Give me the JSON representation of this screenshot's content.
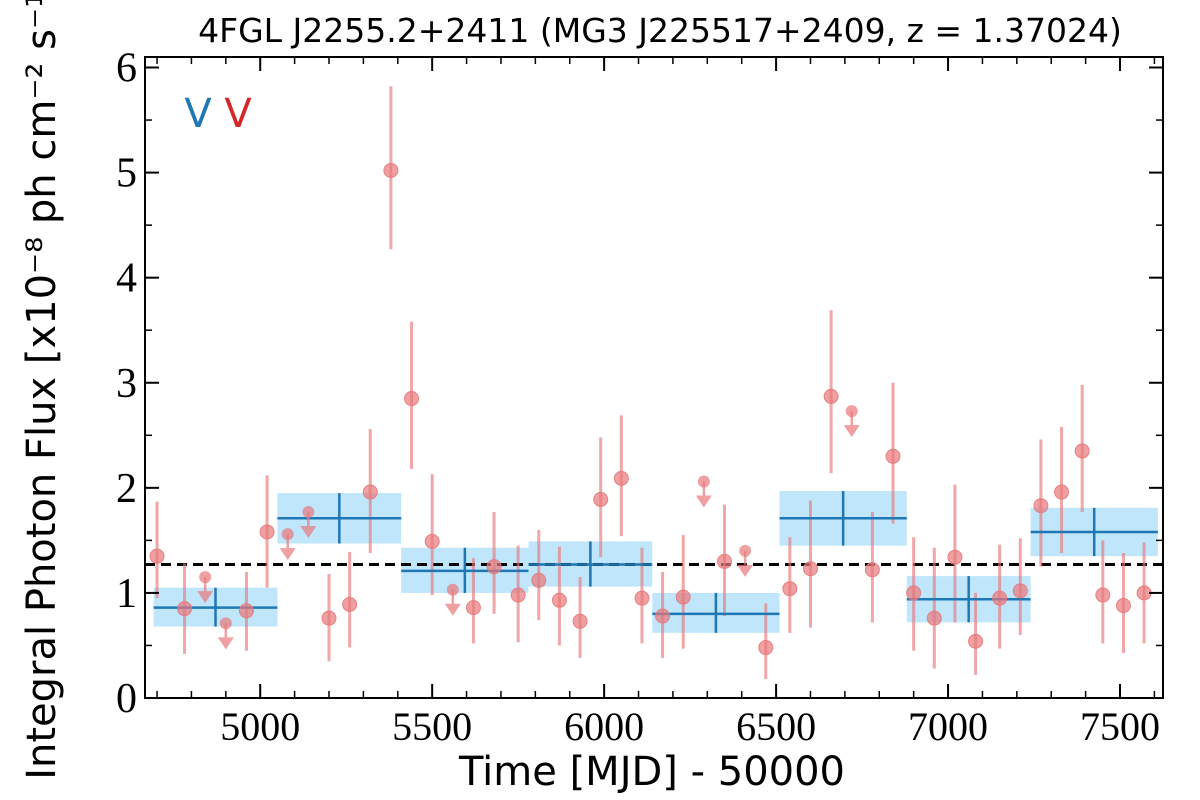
{
  "chart_data": {
    "type": "scatter",
    "title": "4FGL J2255.2+2411 (MG3 J225517+2409, z = 1.37024)",
    "xlabel": "Time [MJD] - 50000",
    "ylabel": "Integral Photon Flux [x10⁻⁸ ph cm⁻² s⁻¹]",
    "xlim": [
      4665,
      7625
    ],
    "ylim": [
      0,
      6.1
    ],
    "xticks": [
      5000,
      5500,
      6000,
      6500,
      7000,
      7500
    ],
    "yticks": [
      0,
      1,
      2,
      3,
      4,
      5,
      6
    ],
    "grid": false,
    "markers": [
      {
        "label": "V",
        "color": "#1f77b4"
      },
      {
        "label": "V",
        "color": "#d62728"
      }
    ],
    "colors": {
      "points": "#e8787a",
      "bins": "#1f77b4",
      "bin_band": "#bfe6fb",
      "mean_line": "#000000"
    },
    "mean_flux": 1.27,
    "points": [
      {
        "x": 4700,
        "y": 1.35,
        "lo": 0.95,
        "hi": 1.87
      },
      {
        "x": 4780,
        "y": 0.85,
        "lo": 0.42,
        "hi": 1.28
      },
      {
        "x": 4960,
        "y": 0.83,
        "lo": 0.45,
        "hi": 1.2
      },
      {
        "x": 5020,
        "y": 1.58,
        "lo": 1.05,
        "hi": 2.12
      },
      {
        "x": 5200,
        "y": 0.76,
        "lo": 0.35,
        "hi": 1.18
      },
      {
        "x": 5260,
        "y": 0.89,
        "lo": 0.48,
        "hi": 1.39
      },
      {
        "x": 5320,
        "y": 1.96,
        "lo": 1.38,
        "hi": 2.56
      },
      {
        "x": 5380,
        "y": 5.02,
        "lo": 4.27,
        "hi": 5.82
      },
      {
        "x": 5440,
        "y": 2.85,
        "lo": 2.18,
        "hi": 3.58
      },
      {
        "x": 5500,
        "y": 1.49,
        "lo": 0.98,
        "hi": 2.13
      },
      {
        "x": 5620,
        "y": 0.86,
        "lo": 0.52,
        "hi": 1.33
      },
      {
        "x": 5680,
        "y": 1.25,
        "lo": 0.8,
        "hi": 1.77
      },
      {
        "x": 5750,
        "y": 0.98,
        "lo": 0.53,
        "hi": 1.45
      },
      {
        "x": 5810,
        "y": 1.12,
        "lo": 0.74,
        "hi": 1.6
      },
      {
        "x": 5870,
        "y": 0.93,
        "lo": 0.5,
        "hi": 1.44
      },
      {
        "x": 5930,
        "y": 0.73,
        "lo": 0.38,
        "hi": 1.15
      },
      {
        "x": 5990,
        "y": 1.89,
        "lo": 1.34,
        "hi": 2.48
      },
      {
        "x": 6050,
        "y": 2.09,
        "lo": 1.54,
        "hi": 2.69
      },
      {
        "x": 6110,
        "y": 0.95,
        "lo": 0.52,
        "hi": 1.43
      },
      {
        "x": 6170,
        "y": 0.78,
        "lo": 0.38,
        "hi": 1.2
      },
      {
        "x": 6230,
        "y": 0.96,
        "lo": 0.47,
        "hi": 1.55
      },
      {
        "x": 6350,
        "y": 1.3,
        "lo": 0.78,
        "hi": 1.84
      },
      {
        "x": 6470,
        "y": 0.48,
        "lo": 0.18,
        "hi": 0.9
      },
      {
        "x": 6540,
        "y": 1.04,
        "lo": 0.62,
        "hi": 1.53
      },
      {
        "x": 6600,
        "y": 1.23,
        "lo": 0.67,
        "hi": 1.88
      },
      {
        "x": 6660,
        "y": 2.87,
        "lo": 2.14,
        "hi": 3.69
      },
      {
        "x": 6780,
        "y": 1.22,
        "lo": 0.72,
        "hi": 1.77
      },
      {
        "x": 6840,
        "y": 2.3,
        "lo": 1.66,
        "hi": 3.0
      },
      {
        "x": 6900,
        "y": 1.0,
        "lo": 0.45,
        "hi": 1.53
      },
      {
        "x": 6960,
        "y": 0.76,
        "lo": 0.28,
        "hi": 1.43
      },
      {
        "x": 7020,
        "y": 1.34,
        "lo": 0.72,
        "hi": 2.03
      },
      {
        "x": 7080,
        "y": 0.54,
        "lo": 0.22,
        "hi": 1.0
      },
      {
        "x": 7150,
        "y": 0.95,
        "lo": 0.47,
        "hi": 1.46
      },
      {
        "x": 7210,
        "y": 1.02,
        "lo": 0.6,
        "hi": 1.52
      },
      {
        "x": 7270,
        "y": 1.83,
        "lo": 1.25,
        "hi": 2.46
      },
      {
        "x": 7330,
        "y": 1.96,
        "lo": 1.38,
        "hi": 2.58
      },
      {
        "x": 7390,
        "y": 2.35,
        "lo": 1.77,
        "hi": 2.98
      },
      {
        "x": 7450,
        "y": 0.98,
        "lo": 0.52,
        "hi": 1.5
      },
      {
        "x": 7510,
        "y": 0.88,
        "lo": 0.43,
        "hi": 1.38
      },
      {
        "x": 7570,
        "y": 1.0,
        "lo": 0.52,
        "hi": 1.48
      }
    ],
    "upper_limits": [
      {
        "x": 4840,
        "y": 1.15
      },
      {
        "x": 4900,
        "y": 0.71
      },
      {
        "x": 5080,
        "y": 1.56
      },
      {
        "x": 5140,
        "y": 1.77
      },
      {
        "x": 5560,
        "y": 1.03
      },
      {
        "x": 6290,
        "y": 2.06
      },
      {
        "x": 6410,
        "y": 1.4
      },
      {
        "x": 6720,
        "y": 2.73
      }
    ],
    "bins": [
      {
        "x0": 4690,
        "x1": 5050,
        "y": 0.86,
        "lo": 0.68,
        "hi": 1.05
      },
      {
        "x0": 5050,
        "x1": 5410,
        "y": 1.71,
        "lo": 1.47,
        "hi": 1.95
      },
      {
        "x0": 5410,
        "x1": 5780,
        "y": 1.21,
        "lo": 1.0,
        "hi": 1.43
      },
      {
        "x0": 5780,
        "x1": 6140,
        "y": 1.27,
        "lo": 1.06,
        "hi": 1.49
      },
      {
        "x0": 6140,
        "x1": 6510,
        "y": 0.8,
        "lo": 0.62,
        "hi": 1.0
      },
      {
        "x0": 6510,
        "x1": 6880,
        "y": 1.71,
        "lo": 1.45,
        "hi": 1.97
      },
      {
        "x0": 6880,
        "x1": 7240,
        "y": 0.94,
        "lo": 0.72,
        "hi": 1.16
      },
      {
        "x0": 7240,
        "x1": 7610,
        "y": 1.58,
        "lo": 1.35,
        "hi": 1.81
      }
    ]
  }
}
